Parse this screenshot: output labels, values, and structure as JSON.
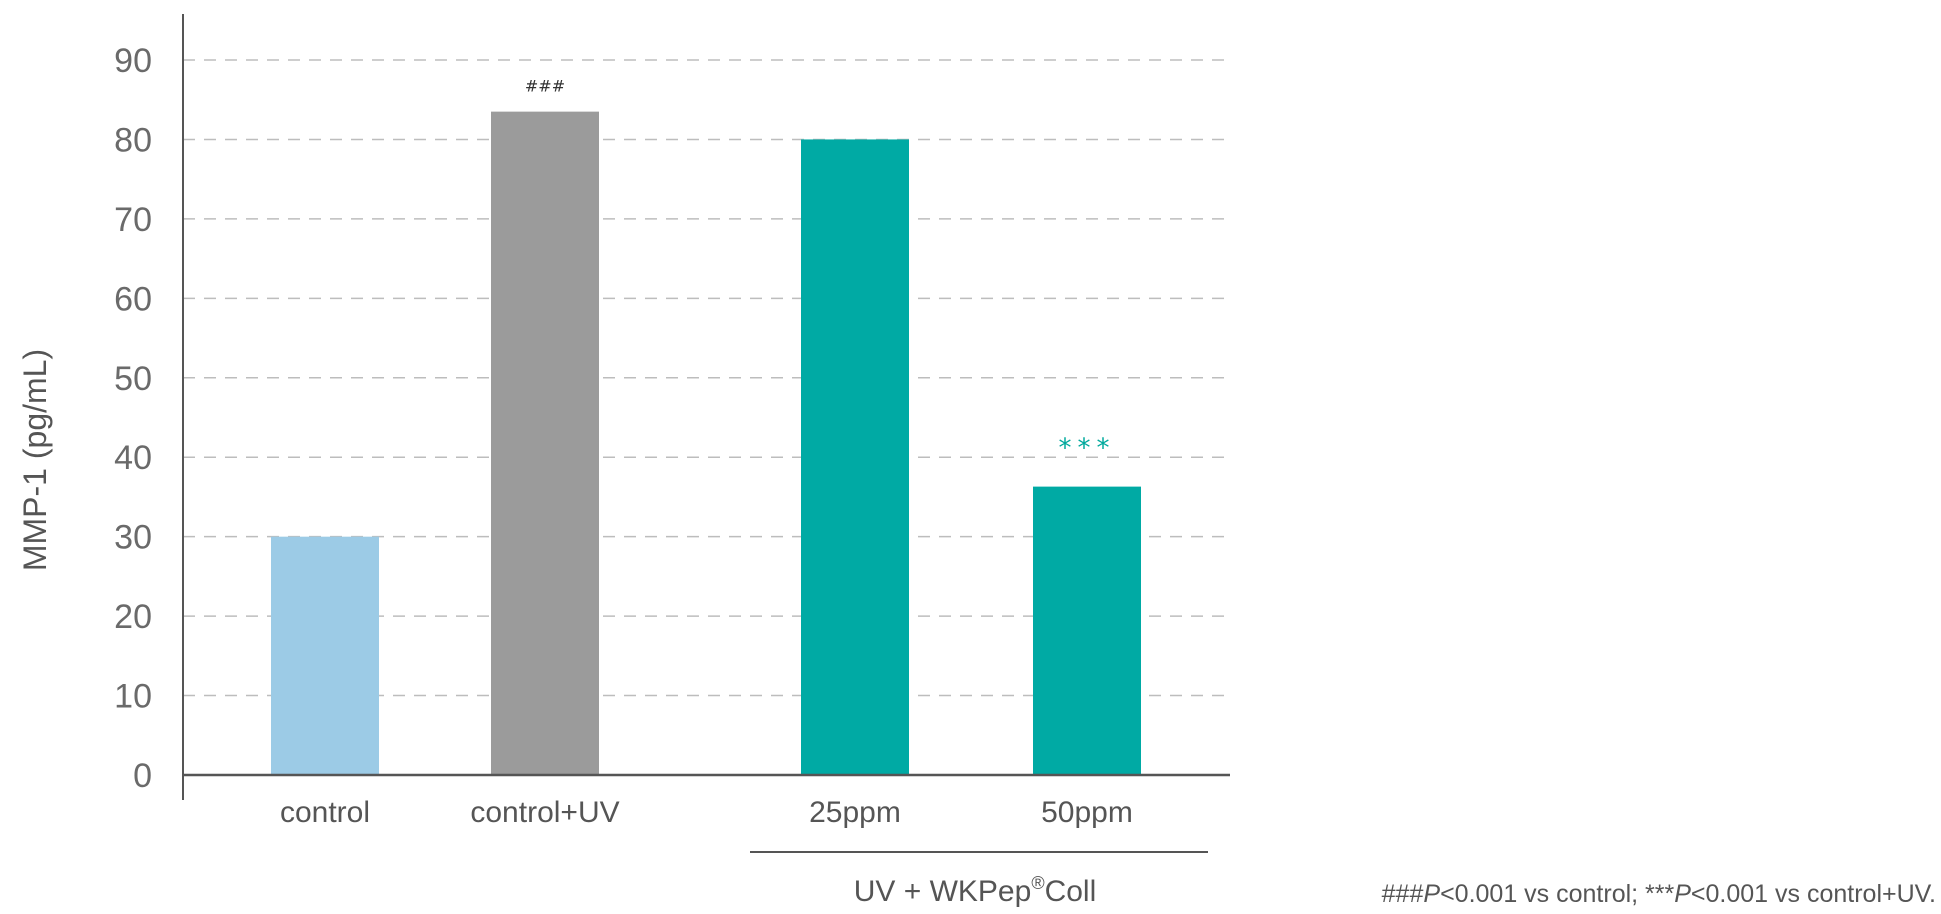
{
  "chart_data": {
    "type": "bar",
    "ylabel": "MMP-1 (pg/mL)",
    "ylim": [
      0,
      90
    ],
    "yticks": [
      0,
      10,
      20,
      30,
      40,
      50,
      60,
      70,
      80,
      90
    ],
    "grid": true,
    "categories": [
      "control",
      "control+UV",
      "25ppm",
      "50ppm"
    ],
    "values": [
      30,
      83.5,
      80,
      36.3
    ],
    "bar_colors": [
      "#9ccbe6",
      "#9b9b9b",
      "#00aaa4",
      "#00aaa4"
    ],
    "annotations": [
      "",
      "###",
      "",
      "***"
    ],
    "annotation_colors": [
      "#333333",
      "#333333",
      "#333333",
      "#00a99d"
    ],
    "group_label": {
      "text_main": "UV + WKPep",
      "text_sup": "®",
      "text_tail": "Coll",
      "categories": [
        "25ppm",
        "50ppm"
      ]
    },
    "footnote": {
      "hash": "###",
      "p1": "P",
      "rest1": "<0.001 vs control; ",
      "stars": "***",
      "p2": "P",
      "rest2": "<0.001 vs control+UV."
    }
  }
}
